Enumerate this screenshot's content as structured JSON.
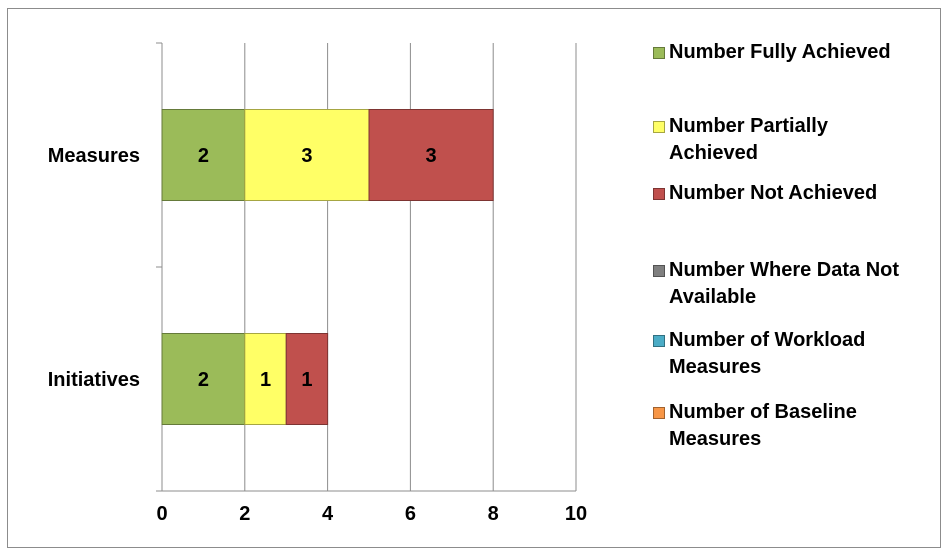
{
  "chart_data": {
    "type": "bar",
    "orientation": "horizontal",
    "stacked": true,
    "title": "",
    "xlabel": "",
    "ylabel": "",
    "categories": [
      "Initiatives",
      "Measures"
    ],
    "xlim": [
      0,
      10
    ],
    "x_ticks": [
      "0",
      "2",
      "4",
      "6",
      "8",
      "10"
    ],
    "grid": true,
    "legend_position": "right",
    "series": [
      {
        "name": "Number Fully Achieved",
        "color": "#9bbb59",
        "values": [
          2,
          2
        ]
      },
      {
        "name": "Number Partially Achieved",
        "color": "#ffff66",
        "values": [
          1,
          3
        ]
      },
      {
        "name": "Number Not Achieved",
        "color": "#c0504d",
        "values": [
          1,
          3
        ]
      },
      {
        "name": "Number Where Data Not Available",
        "color": "#7f7f7f",
        "values": [
          0,
          0
        ]
      },
      {
        "name": "Number of Workload Measures",
        "color": "#4bacc6",
        "values": [
          0,
          0
        ]
      },
      {
        "name": "Number of Baseline Measures",
        "color": "#f79646",
        "values": [
          0,
          0
        ]
      }
    ]
  },
  "legend": {
    "items": [
      {
        "label_lines": [
          "Number Fully Achieved"
        ]
      },
      {
        "label_lines": [
          "Number Partially",
          "Achieved"
        ]
      },
      {
        "label_lines": [
          "Number Not Achieved"
        ]
      },
      {
        "label_lines": [
          "Number Where Data Not",
          "Available"
        ]
      },
      {
        "label_lines": [
          "Number of Workload",
          "Measures"
        ]
      },
      {
        "label_lines": [
          "Number of Baseline",
          "Measures"
        ]
      }
    ]
  }
}
